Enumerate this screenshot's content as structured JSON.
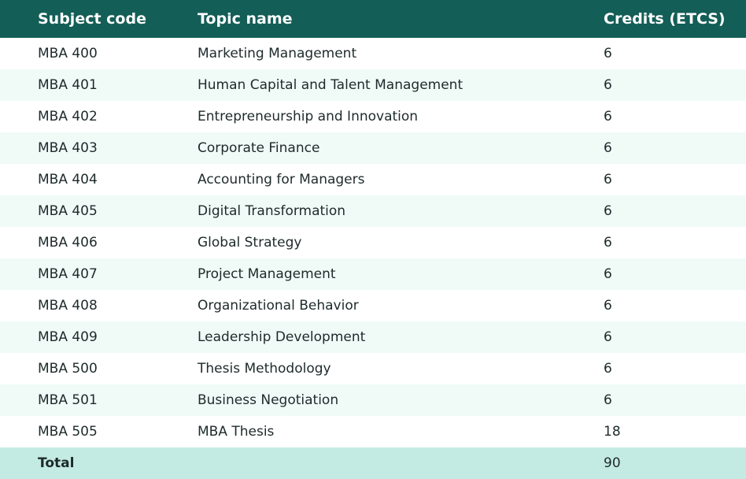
{
  "table": {
    "headers": {
      "code": "Subject code",
      "topic": "Topic name",
      "credits": "Credits (ETCS)"
    },
    "rows": [
      {
        "code": "MBA 400",
        "topic": "Marketing Management",
        "credits": "6"
      },
      {
        "code": "MBA 401",
        "topic": "Human Capital and Talent Management",
        "credits": "6"
      },
      {
        "code": "MBA 402",
        "topic": "Entrepreneurship and Innovation",
        "credits": "6"
      },
      {
        "code": "MBA 403",
        "topic": "Corporate Finance",
        "credits": "6"
      },
      {
        "code": "MBA 404",
        "topic": "Accounting for Managers",
        "credits": "6"
      },
      {
        "code": "MBA 405",
        "topic": "Digital Transformation",
        "credits": "6"
      },
      {
        "code": "MBA 406",
        "topic": "Global Strategy",
        "credits": "6"
      },
      {
        "code": "MBA 407",
        "topic": "Project Management",
        "credits": "6"
      },
      {
        "code": "MBA 408",
        "topic": "Organizational Behavior",
        "credits": "6"
      },
      {
        "code": "MBA 409",
        "topic": "Leadership Development",
        "credits": "6"
      },
      {
        "code": "MBA 500",
        "topic": "Thesis Methodology",
        "credits": "6"
      },
      {
        "code": "MBA 501",
        "topic": "Business Negotiation",
        "credits": "6"
      },
      {
        "code": "MBA 505",
        "topic": "MBA Thesis",
        "credits": "18"
      }
    ],
    "total": {
      "label": "Total",
      "credits": "90"
    }
  },
  "colors": {
    "header_bg": "#135e56",
    "row_alt_bg": "#f0fbf8",
    "total_bg": "#c4ebe3"
  }
}
